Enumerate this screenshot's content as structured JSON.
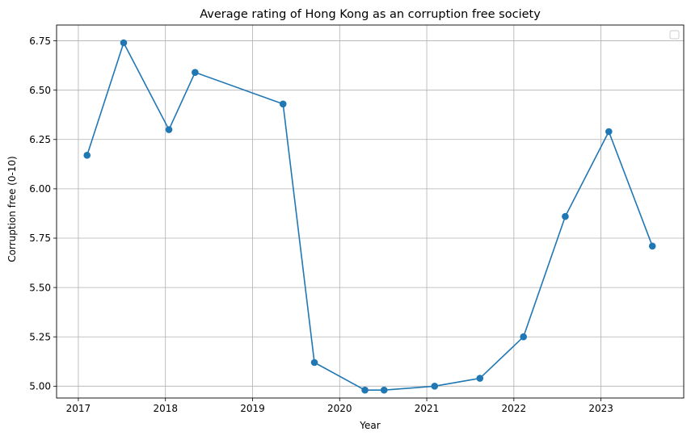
{
  "chart_data": {
    "type": "line",
    "title": "Average rating of Hong Kong as an corruption free society",
    "xlabel": "Year",
    "ylabel": "Corruption free (0-10)",
    "xlim": [
      2016.75,
      2023.95
    ],
    "ylim": [
      4.94,
      6.83
    ],
    "x_ticks": [
      2017,
      2018,
      2019,
      2020,
      2021,
      2022,
      2023
    ],
    "x_tick_labels": [
      "2017",
      "2018",
      "2019",
      "2020",
      "2021",
      "2022",
      "2023"
    ],
    "y_ticks": [
      5.0,
      5.25,
      5.5,
      5.75,
      6.0,
      6.25,
      6.5,
      6.75
    ],
    "y_tick_labels": [
      "5.00",
      "5.25",
      "5.50",
      "5.75",
      "6.00",
      "6.25",
      "6.50",
      "6.75"
    ],
    "grid": true,
    "legend": {
      "placement": "top-right",
      "entries": []
    },
    "series": [
      {
        "name": "Average rating",
        "color": "#1f77b4",
        "x": [
          2017.1,
          2017.52,
          2018.04,
          2018.34,
          2019.35,
          2019.71,
          2020.29,
          2020.51,
          2021.09,
          2021.61,
          2022.11,
          2022.59,
          2023.09,
          2023.59
        ],
        "y": [
          6.17,
          6.74,
          6.3,
          6.59,
          6.43,
          5.12,
          4.98,
          4.98,
          5.0,
          5.04,
          5.25,
          5.86,
          6.29,
          5.71
        ]
      }
    ]
  }
}
